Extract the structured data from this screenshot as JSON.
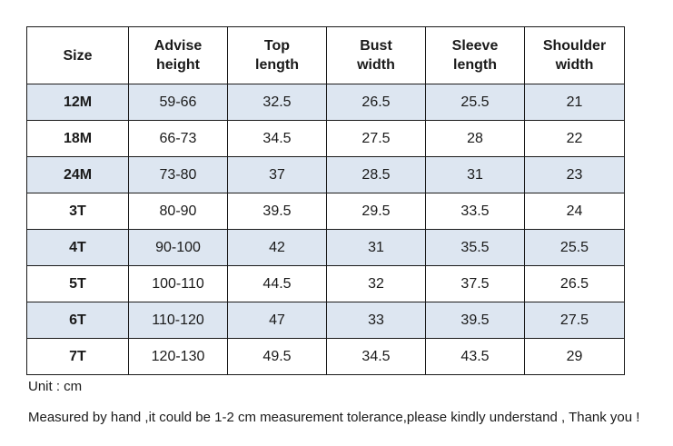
{
  "table": {
    "headers": [
      [
        "Size"
      ],
      [
        "Advise",
        "height"
      ],
      [
        "Top",
        "length"
      ],
      [
        "Bust",
        "width"
      ],
      [
        "Sleeve",
        "length"
      ],
      [
        "Shoulder",
        "width"
      ]
    ],
    "rows": [
      [
        "12M",
        "59-66",
        "32.5",
        "26.5",
        "25.5",
        "21"
      ],
      [
        "18M",
        "66-73",
        "34.5",
        "27.5",
        "28",
        "22"
      ],
      [
        "24M",
        "73-80",
        "37",
        "28.5",
        "31",
        "23"
      ],
      [
        "3T",
        "80-90",
        "39.5",
        "29.5",
        "33.5",
        "24"
      ],
      [
        "4T",
        "90-100",
        "42",
        "31",
        "35.5",
        "25.5"
      ],
      [
        "5T",
        "100-110",
        "44.5",
        "32",
        "37.5",
        "26.5"
      ],
      [
        "6T",
        "110-120",
        "47",
        "33",
        "39.5",
        "27.5"
      ],
      [
        "7T",
        "120-130",
        "49.5",
        "34.5",
        "43.5",
        "29"
      ]
    ],
    "shaded_row_color": "#dde6f1"
  },
  "notes": {
    "unit": "Unit : cm",
    "disclaimer": "Measured by hand ,it could be 1-2 cm measurement tolerance,please kindly understand , Thank you !"
  }
}
